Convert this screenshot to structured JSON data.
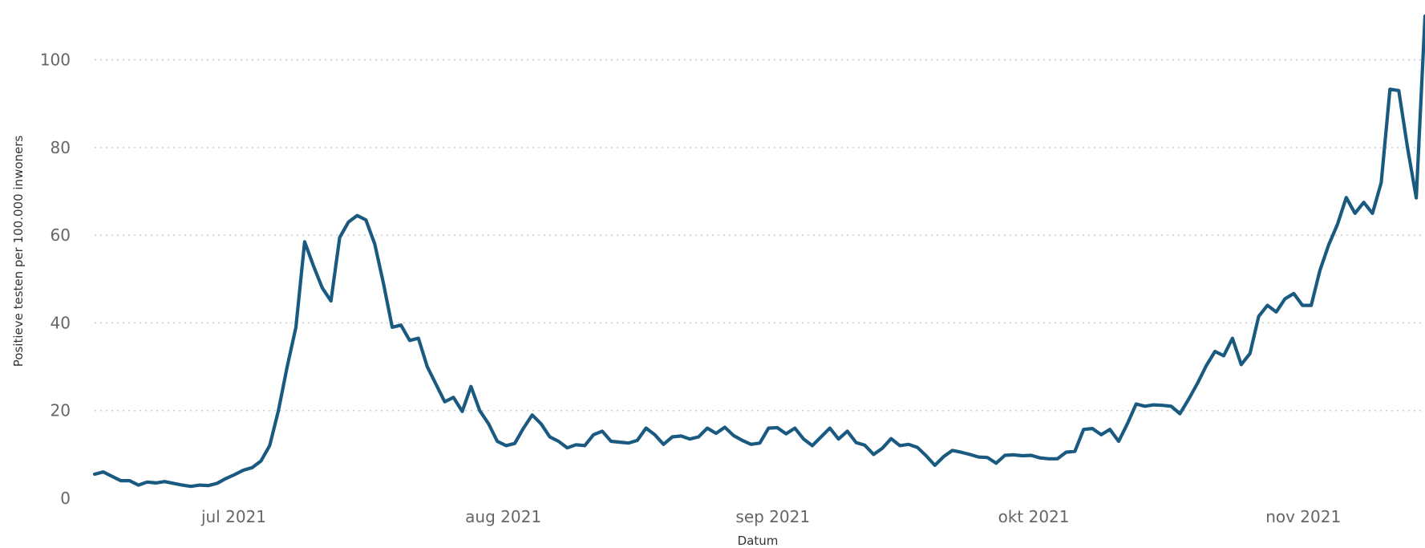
{
  "chart_data": {
    "type": "line",
    "title": "",
    "xlabel": "Datum",
    "ylabel": "Positieve testen per 100.000 inwoners",
    "x_start": "2021-06-15",
    "x_range": [
      "2021-06-15",
      "2021-11-15"
    ],
    "ylim": [
      0,
      110
    ],
    "y_ticks": [
      0,
      20,
      40,
      60,
      80,
      100
    ],
    "x_ticks": [
      {
        "date": "2021-07-01",
        "label": "jul 2021"
      },
      {
        "date": "2021-08-01",
        "label": "aug 2021"
      },
      {
        "date": "2021-09-01",
        "label": "sep 2021"
      },
      {
        "date": "2021-10-01",
        "label": "okt 2021"
      },
      {
        "date": "2021-11-01",
        "label": "nov 2021"
      }
    ],
    "grid": true,
    "series": [
      {
        "name": "",
        "color": "#1b5a80",
        "values": [
          5.5,
          6,
          5,
          4,
          4,
          3,
          3.7,
          3.5,
          3.8,
          3.4,
          3,
          2.7,
          3,
          2.9,
          3.4,
          4.5,
          5.4,
          6.4,
          7,
          8.5,
          12,
          20,
          30,
          39,
          58.5,
          53,
          48,
          45,
          59.5,
          63,
          64.5,
          63.5,
          58,
          49,
          39,
          39.5,
          36,
          36.5,
          30,
          26,
          22,
          23,
          19.8,
          25.5,
          20,
          17,
          13,
          12,
          12.5,
          16,
          19,
          17,
          14,
          13,
          11.5,
          12.2,
          12,
          14.5,
          15.3,
          13,
          12.8,
          12.6,
          13.2,
          16,
          14.5,
          12.3,
          14,
          14.2,
          13.5,
          14,
          16,
          14.8,
          16.2,
          14.3,
          13.2,
          12.3,
          12.6,
          16,
          16.1,
          14.7,
          16,
          13.5,
          12,
          14,
          16,
          13.5,
          15.3,
          12.7,
          12.1,
          10,
          11.4,
          13.6,
          12,
          12.3,
          11.6,
          9.7,
          7.5,
          9.5,
          10.9,
          10.5,
          10,
          9.4,
          9.3,
          8,
          9.8,
          9.9,
          9.7,
          9.8,
          9.2,
          9,
          9,
          10.5,
          10.7,
          15.7,
          15.9,
          14.5,
          15.7,
          13,
          17,
          21.5,
          21,
          21.3,
          21.2,
          21,
          19.3,
          22.6,
          26.2,
          30.2,
          33.5,
          32.5,
          36.5,
          30.5,
          33,
          41.5,
          44,
          42.5,
          45.5,
          46.7,
          44,
          44,
          52,
          57.8,
          62.5,
          68.6,
          65,
          67.5,
          65,
          72,
          93.3,
          93,
          80,
          68.5,
          110
        ]
      }
    ]
  },
  "colors": {
    "line": "#1b5a80",
    "grid": "#c8c8c8",
    "tick_text": "#666666",
    "axis_title": "#333333"
  }
}
